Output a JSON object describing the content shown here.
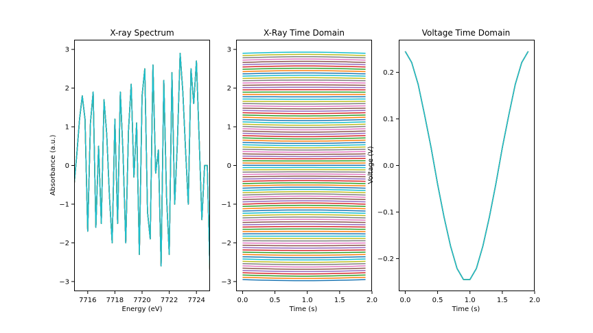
{
  "chart_data": [
    {
      "type": "line",
      "title": "X-ray Spectrum",
      "xlabel": "Energy (eV)",
      "ylabel": "Absorbance (a.u.)",
      "xlim": [
        7715,
        7725
      ],
      "ylim": [
        -3.25,
        3.25
      ],
      "xticks": [
        7716,
        7718,
        7720,
        7722,
        7724
      ],
      "yticks": [
        -3,
        -2,
        -1,
        0,
        1,
        2,
        3
      ],
      "colors": [
        "#1f77b4",
        "#ff7f0e",
        "#2ca02c",
        "#d62728",
        "#9467bd",
        "#8c564b",
        "#e377c2",
        "#7f7f7f",
        "#bcbd22",
        "#17becf"
      ],
      "series": [
        {
          "x": [
            7715.0,
            7715.2,
            7715.4,
            7715.6,
            7715.8,
            7716.0,
            7716.2,
            7716.4,
            7716.6,
            7716.8,
            7717.0,
            7717.2,
            7717.4,
            7717.6,
            7717.8,
            7718.0,
            7718.2,
            7718.4,
            7718.6,
            7718.8,
            7719.0,
            7719.2,
            7719.4,
            7719.6,
            7719.8,
            7720.0,
            7720.2,
            7720.4,
            7720.6,
            7720.8,
            7721.0,
            7721.2,
            7721.4,
            7721.6,
            7721.8,
            7722.0,
            7722.2,
            7722.4,
            7722.6,
            7722.8,
            7723.0,
            7723.2,
            7723.4,
            7723.6,
            7723.8,
            7724.0,
            7724.2,
            7724.4,
            7724.6,
            7724.8,
            7725.0
          ],
          "y": [
            -0.5,
            0.3,
            1.2,
            1.8,
            1.2,
            -1.7,
            1.1,
            1.9,
            -1.6,
            0.5,
            -1.5,
            1.7,
            0.8,
            -0.8,
            -2.0,
            1.2,
            -1.5,
            1.9,
            0.3,
            -2.0,
            0.9,
            2.1,
            -0.3,
            1.1,
            -2.3,
            1.8,
            2.5,
            -1.2,
            -1.9,
            2.6,
            -0.2,
            0.4,
            -2.6,
            2.2,
            -0.8,
            -2.3,
            2.4,
            -1.0,
            0.6,
            2.9,
            1.9,
            0.4,
            -1.0,
            2.5,
            1.6,
            2.7,
            0.7,
            -1.4,
            0.0,
            0.0,
            -2.9
          ]
        }
      ]
    },
    {
      "type": "line",
      "title": "X-Ray Time Domain",
      "xlabel": "Time (s)",
      "ylabel": "",
      "xlim": [
        -0.1,
        2.0
      ],
      "ylim": [
        -3.25,
        3.25
      ],
      "xticks": [
        0.0,
        0.5,
        1.0,
        1.5,
        2.0
      ],
      "xticklabels": [
        "0.0",
        "0.5",
        "1.0",
        "1.5",
        "2.0"
      ],
      "yticks": [
        -3,
        -2,
        -1,
        0,
        1,
        2,
        3
      ],
      "x": [
        0.0,
        0.1,
        0.2,
        0.3,
        0.4,
        0.5,
        0.6,
        0.7,
        0.8,
        0.9,
        1.0,
        1.1,
        1.2,
        1.3,
        1.4,
        1.5,
        1.6,
        1.7,
        1.8,
        1.9
      ],
      "offset_range": [
        -2.95,
        2.9
      ],
      "offset_count": 100,
      "offset_amplitude": 0.03,
      "colors": [
        "#1f77b4",
        "#ff7f0e",
        "#2ca02c",
        "#d62728",
        "#9467bd",
        "#8c564b",
        "#e377c2",
        "#7f7f7f",
        "#bcbd22",
        "#17becf"
      ]
    },
    {
      "type": "line",
      "title": "Voltage Time Domain",
      "xlabel": "Time (s)",
      "ylabel": "Voltage (V)",
      "xlim": [
        -0.1,
        2.0
      ],
      "ylim": [
        -0.27,
        0.27
      ],
      "xticks": [
        0.0,
        0.5,
        1.0,
        1.5,
        2.0
      ],
      "xticklabels": [
        "0.0",
        "0.5",
        "1.0",
        "1.5",
        "2.0"
      ],
      "yticks": [
        -0.2,
        -0.1,
        0.0,
        0.1,
        0.2
      ],
      "yticklabels": [
        "−0.2",
        "−0.1",
        "0.0",
        "0.1",
        "0.2"
      ],
      "x": [
        0.0,
        0.1,
        0.2,
        0.3,
        0.4,
        0.5,
        0.6,
        0.7,
        0.8,
        0.9,
        1.0,
        1.1,
        1.2,
        1.3,
        1.4,
        1.5,
        1.6,
        1.7,
        1.8,
        1.9
      ],
      "y": [
        0.245,
        0.221,
        0.174,
        0.108,
        0.038,
        -0.04,
        -0.111,
        -0.173,
        -0.221,
        -0.245,
        -0.245,
        -0.221,
        -0.173,
        -0.111,
        -0.04,
        0.038,
        0.108,
        0.174,
        0.221,
        0.245
      ],
      "colors": [
        "#1f77b4",
        "#ff7f0e",
        "#2ca02c",
        "#d62728",
        "#9467bd",
        "#8c564b",
        "#e377c2",
        "#7f7f7f",
        "#bcbd22",
        "#17becf"
      ]
    }
  ]
}
